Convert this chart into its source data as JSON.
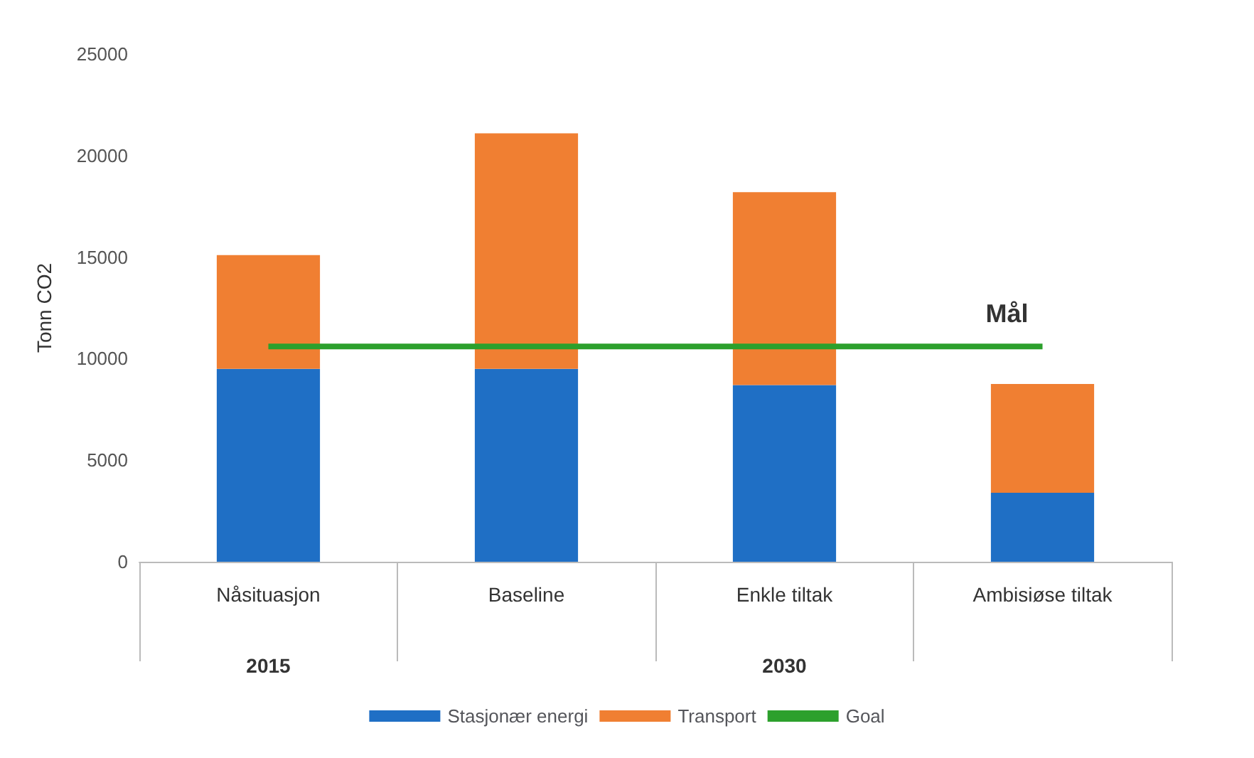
{
  "chart_data": {
    "type": "bar",
    "stacked": true,
    "ylabel": "Tonn CO2",
    "categories": [
      "Nåsituasjon",
      "Baseline",
      "Enkle tiltak",
      "Ambisiøse tiltak"
    ],
    "series": [
      {
        "name": "Stasjonær energi",
        "color": "#1f6fc5",
        "values": [
          9500,
          9500,
          8700,
          3400
        ]
      },
      {
        "name": "Transport",
        "color": "#f07f32",
        "values": [
          5600,
          11600,
          9500,
          5350
        ]
      },
      {
        "name": "Goal",
        "type": "line",
        "color": "#2ca02c",
        "values": [
          10600,
          10600,
          10600,
          10600
        ]
      }
    ],
    "ylim": [
      0,
      25000
    ],
    "yticks": [
      0,
      5000,
      10000,
      15000,
      20000,
      25000
    ],
    "grid": false,
    "legend": "bottom",
    "marker": "none",
    "annotations": [
      {
        "text": "Mål",
        "x": "Ambisiøse tiltak",
        "y": 10600
      },
      "2015",
      "2030"
    ]
  }
}
